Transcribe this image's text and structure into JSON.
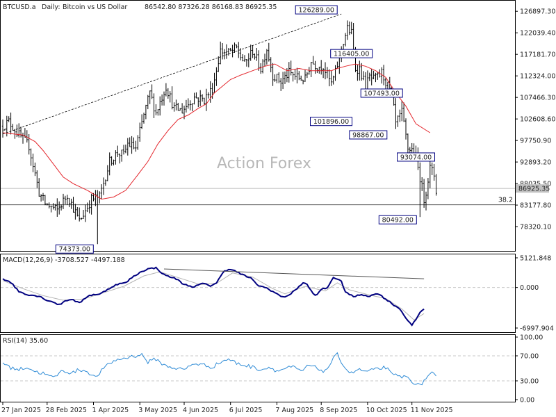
{
  "header": {
    "symbol": "BTCUSD.a",
    "timeframe": "Daily",
    "description": "Bitcoin vs US Dollar",
    "ohlc": "86542.80 87326.28 86168.83 86925.35"
  },
  "watermark": "Action Forex",
  "colors": {
    "price": "#000000",
    "ma": "#e4262c",
    "macd": "#000080",
    "signal": "#b4b4b4",
    "rsi": "#2e8bd6",
    "grid": "#c8c8c8"
  },
  "chart_data": [
    {
      "type": "line",
      "name": "price",
      "title": "BTCUSD.a, Daily:  Bitcoin vs US Dollar  86542.80 87326.28 86168.83 86925.35",
      "x_labels": [
        "27 Jan 2025",
        "28 Feb 2025",
        "1 Apr 2025",
        "3 May 2025",
        "4 Jun 2025",
        "6 Jul 2025",
        "7 Aug 2025",
        "8 Sep 2025",
        "10 Oct 2025",
        "11 Nov 2025"
      ],
      "x_label_day_index": [
        0,
        22,
        45,
        68,
        90,
        113,
        136,
        158,
        181,
        203
      ],
      "y_ticks": [
        "126897.30",
        "122039.40",
        "117181.70",
        "112324.00",
        "107466.30",
        "102608.60",
        "97750.90",
        "92893.20",
        "88035.50",
        "83177.80",
        "78320.10"
      ],
      "ylim": [
        73000,
        128500
      ],
      "price_key_points": [
        [
          0,
          101000
        ],
        [
          3,
          102000
        ],
        [
          8,
          99000
        ],
        [
          13,
          96500
        ],
        [
          18,
          86000
        ],
        [
          21,
          83500
        ],
        [
          27,
          82000
        ],
        [
          32,
          85500
        ],
        [
          38,
          79500
        ],
        [
          44,
          84500
        ],
        [
          48,
          85000
        ],
        [
          53,
          93000
        ],
        [
          57,
          95000
        ],
        [
          60,
          94500
        ],
        [
          62,
          97000
        ],
        [
          66,
          96000
        ],
        [
          70,
          103500
        ],
        [
          73,
          108500
        ],
        [
          76,
          104000
        ],
        [
          81,
          110000
        ],
        [
          85,
          105000
        ],
        [
          89,
          104500
        ],
        [
          95,
          107500
        ],
        [
          100,
          107000
        ],
        [
          104,
          109500
        ],
        [
          108,
          118000
        ],
        [
          112,
          117500
        ],
        [
          116,
          118500
        ],
        [
          120,
          115000
        ],
        [
          124,
          118000
        ],
        [
          128,
          114000
        ],
        [
          131,
          118500
        ],
        [
          134,
          112500
        ],
        [
          138,
          111000
        ],
        [
          142,
          113000
        ],
        [
          146,
          112000
        ],
        [
          150,
          111500
        ],
        [
          153,
          115500
        ],
        [
          156,
          114500
        ],
        [
          159,
          114500
        ],
        [
          163,
          110500
        ],
        [
          165,
          113000
        ],
        [
          168,
          118500
        ],
        [
          171,
          123000
        ],
        [
          173,
          122000
        ],
        [
          175,
          114000
        ],
        [
          177,
          114000
        ],
        [
          180,
          110000
        ],
        [
          182,
          112000
        ],
        [
          184,
          111500
        ],
        [
          186,
          112000
        ],
        [
          188,
          113000
        ],
        [
          192,
          109000
        ],
        [
          193,
          108000
        ],
        [
          195,
          101500
        ],
        [
          198,
          104000
        ],
        [
          201,
          96000
        ],
        [
          204,
          95500
        ],
        [
          207,
          89500
        ],
        [
          209,
          84500
        ],
        [
          210,
          86500
        ],
        [
          212,
          91500
        ],
        [
          214,
          90000
        ],
        [
          215,
          86500
        ]
      ],
      "lows": {
        "feb_low": {
          "day": 47,
          "value": "74373.00"
        },
        "nov_low": {
          "day": 207,
          "value": "80492.00"
        }
      },
      "ma_key_points": [
        [
          0,
          99500
        ],
        [
          10,
          99000
        ],
        [
          16,
          97500
        ],
        [
          20,
          95500
        ],
        [
          25,
          92500
        ],
        [
          30,
          89500
        ],
        [
          35,
          88000
        ],
        [
          42,
          86500
        ],
        [
          49,
          84500
        ],
        [
          55,
          85000
        ],
        [
          61,
          86500
        ],
        [
          67,
          90000
        ],
        [
          72,
          93000
        ],
        [
          77,
          97000
        ],
        [
          82,
          100000
        ],
        [
          87,
          102500
        ],
        [
          92,
          103500
        ],
        [
          97,
          105000
        ],
        [
          101,
          106000
        ],
        [
          105,
          108500
        ],
        [
          109,
          110000
        ],
        [
          113,
          111500
        ],
        [
          118,
          112500
        ],
        [
          124,
          113500
        ],
        [
          130,
          114500
        ],
        [
          135,
          115000
        ],
        [
          141,
          113500
        ],
        [
          147,
          114000
        ],
        [
          153,
          113500
        ],
        [
          157,
          113500
        ],
        [
          163,
          113500
        ],
        [
          166,
          114000
        ],
        [
          170,
          114500
        ],
        [
          175,
          115000
        ],
        [
          180,
          114500
        ],
        [
          185,
          113500
        ],
        [
          190,
          112000
        ],
        [
          195,
          108500
        ],
        [
          200,
          105500
        ],
        [
          205,
          101500
        ],
        [
          212,
          99500
        ]
      ],
      "annotations": [
        "126289.00",
        "116405.00",
        "107493.00",
        "101896.00",
        "98867.00",
        "93074.00",
        "80492.00",
        "74373.00"
      ],
      "current_price_label": "86925.35",
      "fib_level": {
        "label": "38.2",
        "value": 83250
      },
      "trendline": {
        "from": {
          "day": 0,
          "value": 99200
        },
        "to": {
          "day": 168,
          "value": 126289
        }
      },
      "grid": false,
      "legend": "none"
    },
    {
      "type": "line",
      "name": "MACD",
      "title": "MACD(12,26,9) -3708.527 -4497.188",
      "y_ticks": [
        "5121.848",
        "0.000",
        "-6997.904"
      ],
      "ylim": [
        -7600,
        5600
      ],
      "macd_key_points": [
        [
          0,
          1500
        ],
        [
          4,
          900
        ],
        [
          8,
          -700
        ],
        [
          12,
          -1200
        ],
        [
          18,
          -1500
        ],
        [
          22,
          -2200
        ],
        [
          25,
          -2500
        ],
        [
          28,
          -3000
        ],
        [
          31,
          -2300
        ],
        [
          34,
          -2000
        ],
        [
          38,
          -2700
        ],
        [
          42,
          -1500
        ],
        [
          45,
          -1200
        ],
        [
          48,
          -1200
        ],
        [
          53,
          -100
        ],
        [
          57,
          600
        ],
        [
          61,
          800
        ],
        [
          64,
          1700
        ],
        [
          69,
          2800
        ],
        [
          72,
          3200
        ],
        [
          76,
          3400
        ],
        [
          80,
          2200
        ],
        [
          86,
          1500
        ],
        [
          90,
          500
        ],
        [
          95,
          100
        ],
        [
          99,
          700
        ],
        [
          103,
          300
        ],
        [
          106,
          800
        ],
        [
          110,
          2900
        ],
        [
          113,
          3200
        ],
        [
          116,
          2700
        ],
        [
          119,
          2200
        ],
        [
          123,
          1600
        ],
        [
          127,
          300
        ],
        [
          131,
          -100
        ],
        [
          134,
          -700
        ],
        [
          137,
          -1300
        ],
        [
          139,
          -1700
        ],
        [
          143,
          -1100
        ],
        [
          147,
          200
        ],
        [
          149,
          800
        ],
        [
          151,
          500
        ],
        [
          154,
          -1100
        ],
        [
          156,
          -1300
        ],
        [
          158,
          -300
        ],
        [
          161,
          -100
        ],
        [
          164,
          1800
        ],
        [
          168,
          1000
        ],
        [
          170,
          -700
        ],
        [
          172,
          -1200
        ],
        [
          174,
          -1600
        ],
        [
          178,
          -1200
        ],
        [
          182,
          -1500
        ],
        [
          186,
          -1000
        ],
        [
          190,
          -2000
        ],
        [
          194,
          -3000
        ],
        [
          197,
          -3700
        ],
        [
          201,
          -5700
        ],
        [
          203,
          -6600
        ],
        [
          205,
          -5500
        ],
        [
          207,
          -4300
        ],
        [
          209,
          -3700
        ]
      ],
      "signal_key_points": [
        [
          0,
          1200
        ],
        [
          10,
          -200
        ],
        [
          20,
          -1400
        ],
        [
          30,
          -2200
        ],
        [
          40,
          -2000
        ],
        [
          50,
          -900
        ],
        [
          60,
          200
        ],
        [
          70,
          2000
        ],
        [
          78,
          2700
        ],
        [
          88,
          1600
        ],
        [
          98,
          500
        ],
        [
          106,
          700
        ],
        [
          114,
          2500
        ],
        [
          124,
          1800
        ],
        [
          134,
          -200
        ],
        [
          140,
          -1100
        ],
        [
          150,
          200
        ],
        [
          160,
          -600
        ],
        [
          166,
          800
        ],
        [
          172,
          -400
        ],
        [
          182,
          -1300
        ],
        [
          190,
          -1900
        ],
        [
          198,
          -3700
        ],
        [
          204,
          -5600
        ],
        [
          209,
          -4500
        ]
      ],
      "trendline": {
        "from": {
          "day": 80,
          "value": 3200
        },
        "to": {
          "day": 209,
          "value": 1500
        }
      },
      "zero_line": true
    },
    {
      "type": "line",
      "name": "RSI",
      "title": "RSI(14) 35.60",
      "y_ticks": [
        "100.00",
        "70.00",
        "30.00",
        "0.00"
      ],
      "ylim": [
        0,
        100
      ],
      "levels": [
        70,
        30
      ],
      "rsi_key_points": [
        [
          0,
          60
        ],
        [
          3,
          52
        ],
        [
          8,
          48
        ],
        [
          12,
          52
        ],
        [
          16,
          45
        ],
        [
          20,
          42
        ],
        [
          25,
          35
        ],
        [
          30,
          47
        ],
        [
          34,
          42
        ],
        [
          38,
          48
        ],
        [
          42,
          45
        ],
        [
          46,
          35
        ],
        [
          50,
          50
        ],
        [
          55,
          62
        ],
        [
          60,
          66
        ],
        [
          64,
          69
        ],
        [
          69,
          72
        ],
        [
          72,
          60
        ],
        [
          76,
          65
        ],
        [
          80,
          55
        ],
        [
          86,
          50
        ],
        [
          90,
          48
        ],
        [
          95,
          58
        ],
        [
          100,
          55
        ],
        [
          104,
          52
        ],
        [
          108,
          60
        ],
        [
          112,
          65
        ],
        [
          116,
          58
        ],
        [
          120,
          55
        ],
        [
          124,
          52
        ],
        [
          128,
          48
        ],
        [
          133,
          52
        ],
        [
          136,
          45
        ],
        [
          140,
          50
        ],
        [
          144,
          52
        ],
        [
          148,
          45
        ],
        [
          152,
          55
        ],
        [
          156,
          50
        ],
        [
          160,
          45
        ],
        [
          164,
          65
        ],
        [
          166,
          72
        ],
        [
          170,
          50
        ],
        [
          173,
          42
        ],
        [
          176,
          48
        ],
        [
          180,
          45
        ],
        [
          185,
          48
        ],
        [
          190,
          52
        ],
        [
          193,
          40
        ],
        [
          196,
          38
        ],
        [
          201,
          35
        ],
        [
          205,
          25
        ],
        [
          207,
          22
        ],
        [
          210,
          35
        ],
        [
          213,
          42
        ],
        [
          215,
          35.6
        ]
      ],
      "grid": false
    }
  ]
}
